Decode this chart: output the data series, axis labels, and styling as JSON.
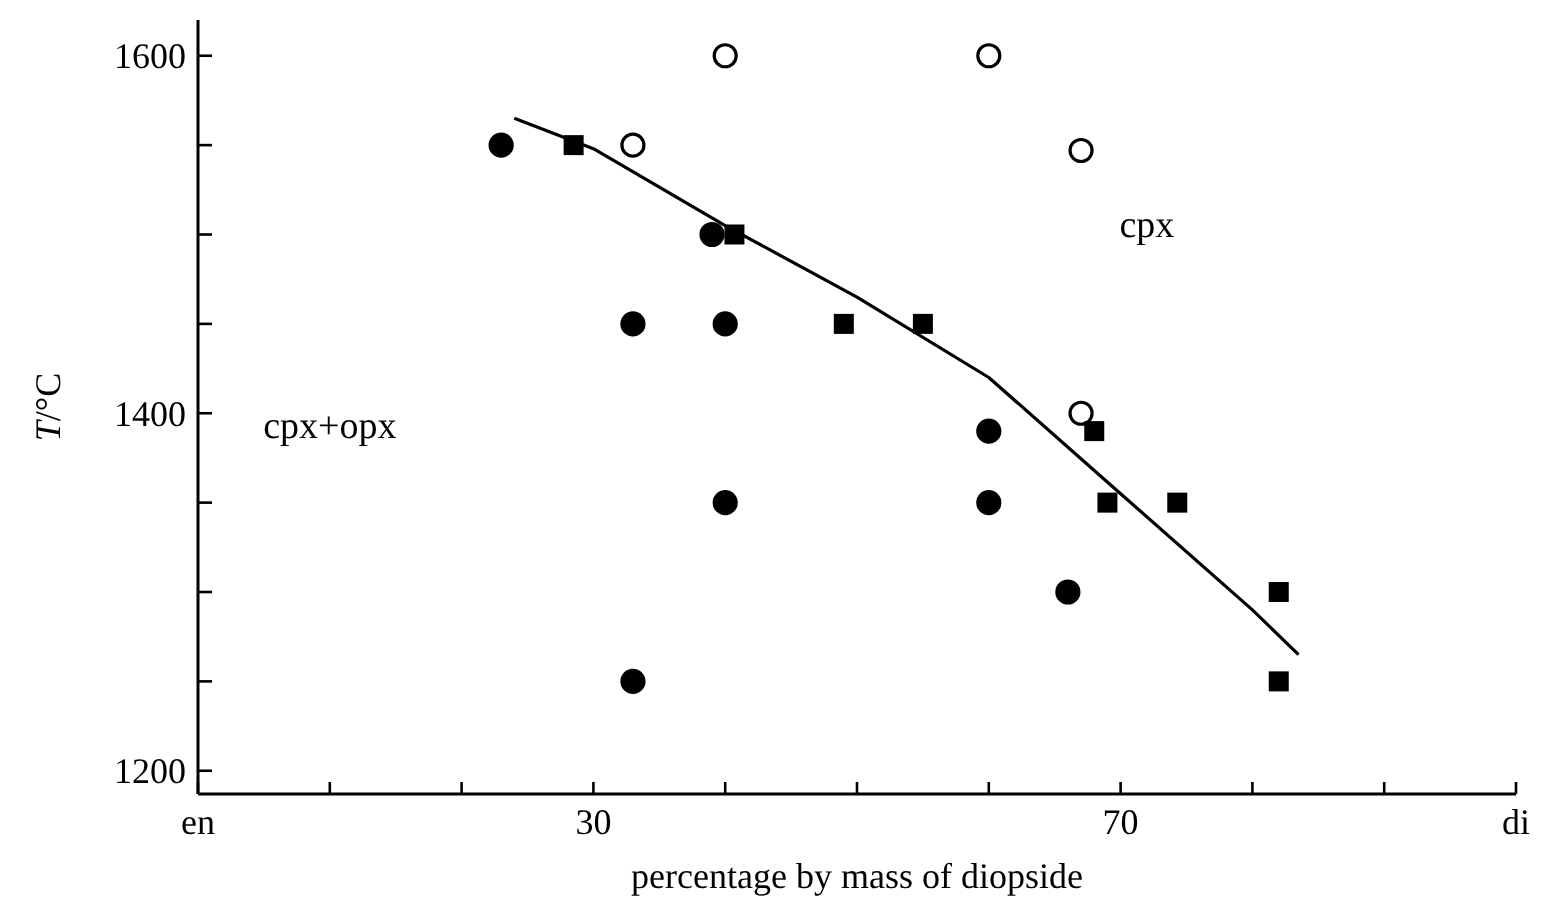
{
  "chart_data": {
    "type": "scatter",
    "xlabel": "percentage by mass of diopside",
    "ylabel": "T/°C",
    "xlim": [
      0,
      100
    ],
    "xticks": [
      {
        "value": 0,
        "label": "en"
      },
      {
        "value": 10,
        "label": null
      },
      {
        "value": 20,
        "label": null
      },
      30,
      {
        "value": 40,
        "label": null
      },
      {
        "value": 50,
        "label": null
      },
      {
        "value": 60,
        "label": null
      },
      70,
      {
        "value": 80,
        "label": null
      },
      {
        "value": 90,
        "label": null
      },
      {
        "value": 100,
        "label": "di"
      }
    ],
    "ylim": [
      1187,
      1620
    ],
    "yticks": [
      1200,
      {
        "value": 1250,
        "label": null
      },
      {
        "value": 1300,
        "label": null
      },
      {
        "value": 1350,
        "label": null
      },
      1400,
      {
        "value": 1450,
        "label": null
      },
      {
        "value": 1500,
        "label": null
      },
      {
        "value": 1550,
        "label": null
      },
      1600
    ],
    "grid": false,
    "annotations": [
      "cpx",
      "cpx+opx"
    ],
    "series": [
      {
        "marker": "circle",
        "color": "#000000",
        "x": [
          23,
          33,
          40,
          39,
          33,
          40,
          60,
          66,
          60
        ],
        "values": [
          1550,
          1450,
          1450,
          1500,
          1250,
          1350,
          1350,
          1300,
          1390
        ]
      },
      {
        "marker": "circle",
        "color": "#ffffff",
        "x": [
          40,
          33,
          60,
          67,
          67
        ],
        "values": [
          1600,
          1550,
          1600,
          1547,
          1400
        ]
      },
      {
        "marker": "square",
        "color": "#000000",
        "x": [
          28.5,
          40.7,
          49,
          55,
          68,
          69,
          74.3,
          82,
          82
        ],
        "values": [
          1550,
          1500,
          1450,
          1450,
          1390,
          1350,
          1350,
          1300,
          1250
        ]
      },
      {
        "type": "line",
        "marker": "none",
        "line_style": "solid",
        "color": "#000000",
        "x": [
          24,
          30,
          40,
          50,
          60,
          70,
          80,
          83.5
        ],
        "values": [
          1565,
          1548,
          1505,
          1465,
          1420,
          1355,
          1290,
          1265
        ]
      }
    ]
  }
}
